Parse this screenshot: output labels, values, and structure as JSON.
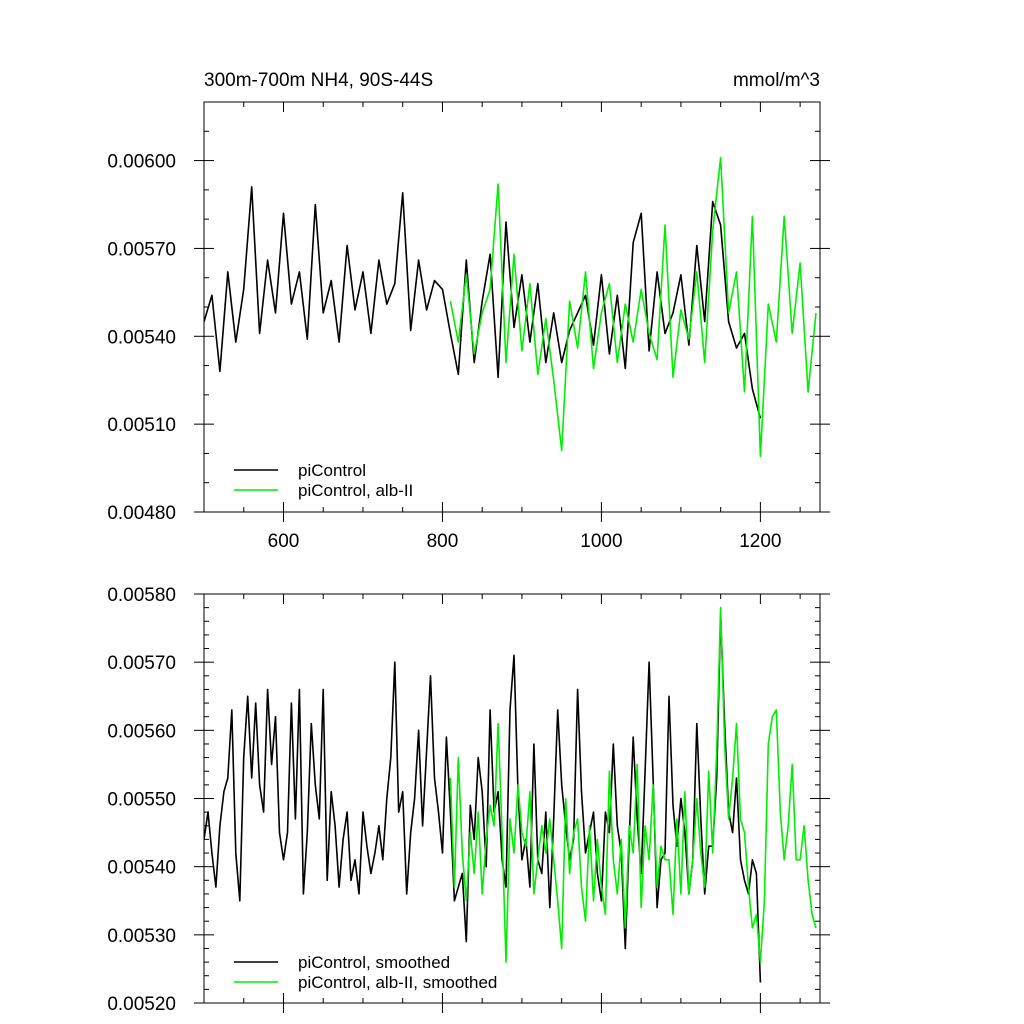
{
  "chart_data": [
    {
      "type": "line",
      "title": "300m-700m NH4, 90S-44S",
      "units": "mmol/m^3",
      "xlim": [
        500,
        1275
      ],
      "ylim": [
        0.0048,
        0.0062
      ],
      "x_ticks": [
        600,
        800,
        1000,
        1200
      ],
      "x_tick_labels": [
        "600",
        "800",
        "1000",
        "1200"
      ],
      "y_ticks": [
        0.0048,
        0.0051,
        0.0054,
        0.0057,
        0.006
      ],
      "y_tick_labels": [
        "0.00480",
        "0.00510",
        "0.00540",
        "0.00570",
        "0.00600"
      ],
      "legend_position": "bottom-left",
      "series": [
        {
          "name": "piControl",
          "color": "#000000",
          "x": [
            500,
            510,
            520,
            530,
            540,
            550,
            560,
            570,
            580,
            590,
            600,
            610,
            620,
            630,
            640,
            650,
            660,
            670,
            680,
            690,
            700,
            710,
            720,
            730,
            740,
            750,
            760,
            770,
            780,
            790,
            800,
            810,
            820,
            830,
            840,
            850,
            860,
            870,
            880,
            890,
            900,
            910,
            920,
            930,
            940,
            950,
            960,
            970,
            980,
            990,
            1000,
            1010,
            1020,
            1030,
            1040,
            1050,
            1060,
            1070,
            1080,
            1090,
            1100,
            1110,
            1120,
            1130,
            1140,
            1150,
            1160,
            1170,
            1180,
            1190,
            1200
          ],
          "y": [
            0.00545,
            0.00554,
            0.00528,
            0.00562,
            0.00538,
            0.00556,
            0.00591,
            0.00541,
            0.00566,
            0.00548,
            0.00582,
            0.00551,
            0.00562,
            0.00539,
            0.00585,
            0.00548,
            0.00559,
            0.00538,
            0.00571,
            0.00549,
            0.00562,
            0.00541,
            0.00566,
            0.00551,
            0.00558,
            0.00589,
            0.00542,
            0.00566,
            0.00549,
            0.00559,
            0.00556,
            0.00541,
            0.00527,
            0.00566,
            0.00531,
            0.00552,
            0.00568,
            0.00526,
            0.00579,
            0.00543,
            0.00561,
            0.00538,
            0.00558,
            0.00531,
            0.00548,
            0.00531,
            0.00542,
            0.00548,
            0.00554,
            0.00537,
            0.00561,
            0.00534,
            0.00554,
            0.00529,
            0.00572,
            0.00582,
            0.00535,
            0.00562,
            0.00541,
            0.00548,
            0.00561,
            0.00537,
            0.00571,
            0.00545,
            0.00586,
            0.00578,
            0.00545,
            0.00536,
            0.00541,
            0.00522,
            0.00512
          ]
        },
        {
          "name": "piControl, alb-II",
          "color": "#00ee00",
          "x": [
            810,
            820,
            830,
            840,
            850,
            860,
            870,
            880,
            890,
            900,
            910,
            920,
            930,
            940,
            950,
            960,
            970,
            980,
            990,
            1000,
            1010,
            1020,
            1030,
            1040,
            1050,
            1060,
            1070,
            1080,
            1090,
            1100,
            1110,
            1120,
            1130,
            1140,
            1150,
            1160,
            1170,
            1180,
            1190,
            1200,
            1210,
            1220,
            1230,
            1240,
            1250,
            1260,
            1270
          ],
          "y": [
            0.00552,
            0.00538,
            0.00561,
            0.00534,
            0.00548,
            0.00556,
            0.00592,
            0.00531,
            0.00568,
            0.00535,
            0.00558,
            0.00527,
            0.00546,
            0.00525,
            0.00501,
            0.00552,
            0.00536,
            0.00562,
            0.00529,
            0.00548,
            0.00558,
            0.00531,
            0.00551,
            0.00538,
            0.00556,
            0.00541,
            0.00532,
            0.00578,
            0.00526,
            0.00549,
            0.00539,
            0.00562,
            0.00531,
            0.00576,
            0.00601,
            0.00548,
            0.00562,
            0.00521,
            0.00581,
            0.00499,
            0.00551,
            0.00538,
            0.00581,
            0.00541,
            0.00565,
            0.00521,
            0.00548
          ]
        }
      ]
    },
    {
      "type": "line",
      "xlim": [
        500,
        1275
      ],
      "ylim": [
        0.0052,
        0.0058
      ],
      "x_ticks": [
        600,
        800,
        1000,
        1200
      ],
      "y_ticks": [
        0.0052,
        0.0053,
        0.0054,
        0.0055,
        0.0056,
        0.0057,
        0.0058
      ],
      "y_tick_labels": [
        "0.00520",
        "0.00530",
        "0.00540",
        "0.00550",
        "0.00560",
        "0.00570",
        "0.00580"
      ],
      "legend_position": "bottom-left",
      "series": [
        {
          "name": "piControl, smoothed",
          "color": "#000000",
          "x": [
            500,
            505,
            510,
            515,
            520,
            525,
            530,
            535,
            540,
            545,
            550,
            555,
            560,
            565,
            570,
            575,
            580,
            585,
            590,
            595,
            600,
            605,
            610,
            615,
            620,
            625,
            630,
            635,
            640,
            645,
            650,
            655,
            660,
            665,
            670,
            675,
            680,
            685,
            690,
            695,
            700,
            705,
            710,
            715,
            720,
            725,
            730,
            735,
            740,
            745,
            750,
            755,
            760,
            765,
            770,
            775,
            780,
            785,
            790,
            795,
            800,
            805,
            810,
            815,
            820,
            825,
            830,
            835,
            840,
            845,
            850,
            855,
            860,
            865,
            870,
            875,
            880,
            885,
            890,
            895,
            900,
            905,
            910,
            915,
            920,
            925,
            930,
            935,
            940,
            945,
            950,
            955,
            960,
            965,
            970,
            975,
            980,
            985,
            990,
            995,
            1000,
            1005,
            1010,
            1015,
            1020,
            1025,
            1030,
            1035,
            1040,
            1045,
            1050,
            1055,
            1060,
            1065,
            1070,
            1075,
            1080,
            1085,
            1090,
            1095,
            1100,
            1105,
            1110,
            1115,
            1120,
            1125,
            1130,
            1135,
            1140,
            1145,
            1150,
            1155,
            1160,
            1165,
            1170,
            1175,
            1180,
            1185,
            1190,
            1195,
            1200
          ],
          "y": [
            0.00544,
            0.00548,
            0.00542,
            0.00537,
            0.00546,
            0.00551,
            0.00553,
            0.00563,
            0.00542,
            0.00535,
            0.00556,
            0.00565,
            0.00553,
            0.00564,
            0.00552,
            0.00548,
            0.00566,
            0.00555,
            0.00562,
            0.00545,
            0.00541,
            0.00545,
            0.00564,
            0.00547,
            0.00566,
            0.00536,
            0.00545,
            0.00561,
            0.00552,
            0.00547,
            0.00566,
            0.00538,
            0.00551,
            0.00546,
            0.00537,
            0.00544,
            0.00548,
            0.00538,
            0.00541,
            0.00536,
            0.00548,
            0.00543,
            0.00539,
            0.00542,
            0.00546,
            0.00541,
            0.0055,
            0.00556,
            0.0057,
            0.00548,
            0.00551,
            0.00536,
            0.00545,
            0.0055,
            0.0056,
            0.00546,
            0.00557,
            0.00568,
            0.00553,
            0.00548,
            0.00542,
            0.00559,
            0.00548,
            0.00535,
            0.00537,
            0.00539,
            0.00529,
            0.00549,
            0.00544,
            0.00556,
            0.00551,
            0.0054,
            0.00563,
            0.00548,
            0.00551,
            0.00541,
            0.00537,
            0.00563,
            0.00571,
            0.00551,
            0.00541,
            0.00544,
            0.00537,
            0.00558,
            0.00541,
            0.00539,
            0.00548,
            0.00534,
            0.00547,
            0.00563,
            0.00552,
            0.00546,
            0.00541,
            0.00544,
            0.00566,
            0.00551,
            0.00542,
            0.00545,
            0.00548,
            0.00539,
            0.00535,
            0.00548,
            0.00545,
            0.00558,
            0.00546,
            0.00542,
            0.00528,
            0.00544,
            0.00559,
            0.00547,
            0.00539,
            0.00554,
            0.0057,
            0.00553,
            0.00534,
            0.00541,
            0.00542,
            0.00565,
            0.00549,
            0.00543,
            0.0055,
            0.00545,
            0.00536,
            0.00541,
            0.00561,
            0.00547,
            0.00536,
            0.00543,
            0.00543,
            0.00553,
            0.00577,
            0.00561,
            0.00548,
            0.00545,
            0.00553,
            0.00541,
            0.00538,
            0.00536,
            0.00541,
            0.00539,
            0.00523
          ]
        },
        {
          "name": "piControl, alb-II, smoothed",
          "color": "#00ee00",
          "x": [
            810,
            815,
            820,
            825,
            830,
            835,
            840,
            845,
            850,
            855,
            860,
            865,
            870,
            875,
            880,
            885,
            890,
            895,
            900,
            905,
            910,
            915,
            920,
            925,
            930,
            935,
            940,
            945,
            950,
            955,
            960,
            965,
            970,
            975,
            980,
            985,
            990,
            995,
            1000,
            1005,
            1010,
            1015,
            1020,
            1025,
            1030,
            1035,
            1040,
            1045,
            1050,
            1055,
            1060,
            1065,
            1070,
            1075,
            1080,
            1085,
            1090,
            1095,
            1100,
            1105,
            1110,
            1115,
            1120,
            1125,
            1130,
            1135,
            1140,
            1145,
            1150,
            1155,
            1160,
            1165,
            1170,
            1175,
            1180,
            1185,
            1190,
            1195,
            1200,
            1205,
            1210,
            1215,
            1220,
            1225,
            1230,
            1235,
            1240,
            1245,
            1250,
            1255,
            1260,
            1265,
            1270
          ],
          "y": [
            0.00553,
            0.00537,
            0.00556,
            0.00542,
            0.00535,
            0.00545,
            0.00539,
            0.00548,
            0.00536,
            0.00544,
            0.00549,
            0.00546,
            0.00561,
            0.00545,
            0.00526,
            0.00547,
            0.00542,
            0.00552,
            0.00545,
            0.00543,
            0.00551,
            0.00536,
            0.00541,
            0.00546,
            0.00542,
            0.00547,
            0.00541,
            0.00535,
            0.00528,
            0.0055,
            0.00539,
            0.00545,
            0.00547,
            0.00537,
            0.00532,
            0.00546,
            0.00535,
            0.00544,
            0.00537,
            0.00533,
            0.00554,
            0.00541,
            0.00536,
            0.00544,
            0.00531,
            0.00546,
            0.00542,
            0.00555,
            0.00534,
            0.00546,
            0.00541,
            0.00552,
            0.00537,
            0.00543,
            0.00541,
            0.00541,
            0.00533,
            0.00547,
            0.00536,
            0.00551,
            0.00536,
            0.00541,
            0.0055,
            0.00542,
            0.00537,
            0.00554,
            0.00542,
            0.00557,
            0.00578,
            0.00558,
            0.00547,
            0.00553,
            0.00561,
            0.00547,
            0.00545,
            0.00537,
            0.00531,
            0.00533,
            0.00526,
            0.00535,
            0.00558,
            0.00562,
            0.00563,
            0.00548,
            0.00541,
            0.00546,
            0.00555,
            0.00541,
            0.00541,
            0.00546,
            0.00538,
            0.00533,
            0.00531
          ]
        }
      ]
    }
  ]
}
